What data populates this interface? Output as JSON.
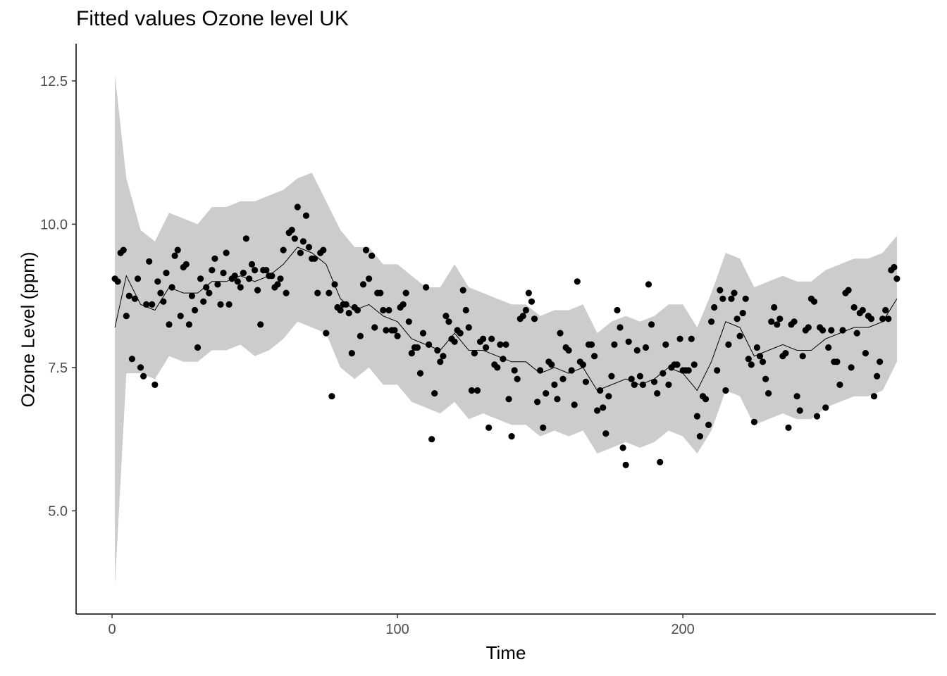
{
  "chart_data": {
    "type": "line",
    "title": "Fitted values Ozone level UK",
    "xlabel": "Time",
    "ylabel": "Ozone Level (ppm)",
    "xlim": [
      -12.6,
      288.6
    ],
    "ylim": [
      3.2,
      13.15
    ],
    "x_ticks": [
      0,
      100,
      200
    ],
    "x_tick_labels": [
      "0",
      "100",
      "200"
    ],
    "y_ticks": [
      5.0,
      7.5,
      10.0,
      12.5
    ],
    "y_tick_labels": [
      "5.0",
      "7.5",
      "10.0",
      "12.5"
    ],
    "grid": false,
    "colors": {
      "band": "#cccccc",
      "line": "#000000",
      "points": "#000000",
      "axis": "#000000",
      "tick_label": "#4d4d4d"
    },
    "fitted_line": {
      "x": [
        1,
        5,
        10,
        15,
        20,
        25,
        30,
        35,
        40,
        45,
        50,
        55,
        60,
        65,
        70,
        75,
        80,
        85,
        90,
        95,
        100,
        105,
        110,
        115,
        120,
        125,
        130,
        135,
        140,
        145,
        150,
        155,
        160,
        165,
        170,
        175,
        180,
        185,
        190,
        195,
        200,
        205,
        210,
        215,
        220,
        225,
        230,
        235,
        240,
        245,
        250,
        255,
        260,
        265,
        270,
        275
      ],
      "y": [
        8.2,
        9.1,
        8.6,
        8.5,
        8.9,
        8.8,
        8.8,
        9.0,
        9.0,
        9.1,
        9.0,
        9.1,
        9.3,
        9.6,
        9.5,
        9.3,
        8.7,
        8.5,
        8.6,
        8.4,
        8.3,
        8.0,
        7.9,
        7.8,
        8.1,
        7.8,
        7.8,
        7.7,
        7.6,
        7.6,
        7.4,
        7.5,
        7.4,
        7.5,
        7.1,
        7.2,
        7.3,
        7.2,
        7.3,
        7.5,
        7.4,
        7.1,
        7.6,
        8.3,
        8.2,
        7.7,
        7.8,
        7.9,
        7.8,
        7.8,
        8.0,
        8.1,
        8.2,
        8.2,
        8.3,
        8.7
      ]
    },
    "band_upper": [
      12.6,
      10.8,
      9.9,
      9.7,
      10.2,
      10.1,
      10.0,
      10.3,
      10.3,
      10.4,
      10.4,
      10.5,
      10.6,
      10.8,
      10.9,
      10.4,
      9.9,
      9.6,
      9.6,
      9.3,
      9.3,
      9.1,
      8.9,
      8.9,
      9.3,
      8.9,
      8.8,
      8.7,
      8.6,
      8.6,
      8.4,
      8.5,
      8.5,
      8.6,
      8.1,
      8.3,
      8.4,
      8.3,
      8.4,
      8.6,
      8.6,
      8.2,
      8.8,
      9.5,
      9.4,
      8.9,
      9.0,
      9.1,
      9.0,
      9.0,
      9.2,
      9.3,
      9.4,
      9.4,
      9.5,
      9.8
    ],
    "band_lower": [
      3.7,
      7.4,
      7.4,
      7.3,
      7.7,
      7.6,
      7.6,
      7.8,
      7.8,
      7.9,
      7.7,
      7.8,
      8.0,
      8.3,
      8.2,
      8.1,
      7.5,
      7.3,
      7.5,
      7.2,
      7.2,
      6.9,
      6.8,
      6.7,
      6.9,
      6.6,
      6.7,
      6.6,
      6.5,
      6.5,
      6.3,
      6.4,
      6.3,
      6.4,
      6.0,
      6.1,
      6.2,
      6.1,
      6.2,
      6.4,
      6.3,
      6.0,
      6.4,
      7.1,
      7.0,
      6.5,
      6.6,
      6.7,
      6.6,
      6.6,
      6.8,
      6.9,
      7.0,
      7.0,
      7.1,
      7.6
    ],
    "observed_points": {
      "x": [
        1,
        2,
        3,
        4,
        5,
        6,
        7,
        8,
        9,
        10,
        11,
        12,
        13,
        14,
        15,
        16,
        17,
        18,
        19,
        20,
        21,
        22,
        23,
        24,
        25,
        26,
        27,
        28,
        29,
        30,
        31,
        32,
        33,
        34,
        35,
        36,
        37,
        38,
        39,
        40,
        41,
        42,
        43,
        44,
        45,
        46,
        47,
        48,
        49,
        50,
        51,
        52,
        53,
        54,
        55,
        56,
        57,
        58,
        59,
        60,
        61,
        62,
        63,
        64,
        65,
        66,
        67,
        68,
        69,
        70,
        71,
        72,
        73,
        74,
        75,
        76,
        77,
        78,
        79,
        80,
        81,
        82,
        83,
        84,
        85,
        86,
        87,
        88,
        89,
        90,
        91,
        92,
        93,
        94,
        95,
        96,
        97,
        98,
        99,
        100,
        101,
        102,
        103,
        104,
        105,
        106,
        107,
        108,
        109,
        110,
        111,
        112,
        113,
        114,
        115,
        116,
        117,
        118,
        119,
        120,
        121,
        122,
        123,
        124,
        125,
        126,
        127,
        128,
        129,
        130,
        131,
        132,
        133,
        134,
        135,
        136,
        137,
        138,
        139,
        140,
        141,
        142,
        143,
        144,
        145,
        146,
        147,
        148,
        149,
        150,
        151,
        152,
        153,
        154,
        155,
        156,
        157,
        158,
        159,
        160,
        161,
        162,
        163,
        164,
        165,
        166,
        167,
        168,
        169,
        170,
        171,
        172,
        173,
        174,
        175,
        176,
        177,
        178,
        179,
        180,
        181,
        182,
        183,
        184,
        185,
        186,
        187,
        188,
        189,
        190,
        191,
        192,
        193,
        194,
        195,
        196,
        197,
        198,
        199,
        200,
        201,
        202,
        203,
        204,
        205,
        206,
        207,
        208,
        209,
        210,
        211,
        212,
        213,
        214,
        215,
        216,
        217,
        218,
        219,
        220,
        221,
        222,
        223,
        224,
        225,
        226,
        227,
        228,
        229,
        230,
        231,
        232,
        233,
        234,
        235,
        236,
        237,
        238,
        239,
        240,
        241,
        242,
        243,
        244,
        245,
        246,
        247,
        248,
        249,
        250,
        251,
        252,
        253,
        254,
        255,
        256,
        257,
        258,
        259,
        260,
        261,
        262,
        263,
        264,
        265,
        266,
        267,
        268,
        269,
        270,
        271,
        272,
        273,
        274,
        275
      ],
      "y": [
        9.05,
        9.0,
        9.5,
        9.55,
        8.4,
        8.75,
        7.65,
        8.7,
        9.05,
        7.5,
        7.35,
        8.6,
        9.35,
        8.6,
        7.2,
        9.0,
        8.8,
        8.65,
        9.15,
        8.25,
        8.9,
        9.45,
        9.55,
        8.4,
        9.25,
        9.3,
        8.25,
        8.75,
        8.5,
        7.85,
        9.05,
        8.65,
        8.9,
        8.8,
        9.2,
        9.4,
        8.95,
        8.6,
        9.15,
        9.5,
        8.6,
        9.05,
        9.1,
        9.0,
        8.9,
        9.15,
        9.75,
        9.05,
        9.3,
        9.2,
        8.85,
        8.25,
        9.2,
        9.2,
        9.1,
        9.1,
        8.9,
        8.95,
        9.05,
        9.55,
        8.8,
        9.85,
        9.9,
        9.75,
        10.3,
        9.5,
        9.7,
        10.15,
        9.6,
        9.4,
        9.4,
        8.8,
        9.5,
        9.55,
        8.1,
        8.8,
        7.0,
        8.95,
        8.55,
        8.5,
        8.6,
        8.6,
        8.45,
        7.75,
        8.55,
        8.5,
        8.05,
        8.95,
        9.55,
        9.05,
        9.45,
        8.2,
        8.8,
        8.8,
        8.5,
        8.15,
        8.5,
        8.15,
        8.15,
        8.05,
        8.55,
        8.6,
        8.8,
        8.3,
        7.75,
        7.85,
        7.85,
        7.4,
        8.1,
        8.9,
        7.9,
        6.25,
        7.05,
        7.8,
        7.6,
        7.7,
        8.4,
        8.3,
        8.0,
        7.95,
        8.15,
        8.1,
        8.85,
        8.5,
        8.2,
        7.1,
        7.75,
        7.1,
        7.95,
        8.0,
        7.85,
        6.45,
        8.0,
        7.55,
        7.5,
        7.9,
        7.65,
        7.9,
        6.95,
        6.3,
        7.45,
        7.3,
        8.35,
        8.4,
        8.5,
        8.8,
        8.65,
        8.35,
        6.9,
        7.45,
        6.45,
        7.05,
        7.6,
        7.55,
        7.2,
        6.95,
        8.1,
        7.3,
        7.85,
        7.8,
        7.45,
        6.85,
        9.0,
        7.6,
        7.55,
        7.25,
        7.9,
        7.9,
        7.7,
        6.75,
        7.1,
        6.8,
        6.35,
        7.0,
        7.35,
        7.9,
        8.5,
        8.2,
        6.1,
        5.8,
        7.95,
        7.3,
        7.2,
        7.8,
        7.35,
        7.2,
        7.85,
        8.95,
        8.25,
        7.25,
        7.05,
        5.85,
        7.4,
        7.9,
        7.2,
        7.5,
        7.55,
        7.55,
        8.0,
        7.45,
        7.45,
        7.45,
        8.0,
        7.55,
        6.65,
        6.3,
        7.0,
        6.95,
        6.5,
        8.3,
        8.55,
        7.45,
        8.85,
        8.7,
        7.1,
        7.9,
        8.7,
        8.8,
        8.35,
        8.05,
        8.45,
        8.7,
        7.65,
        7.55,
        6.55,
        7.85,
        7.7,
        7.6,
        7.3,
        7.05,
        8.3,
        8.55,
        8.25,
        8.35,
        7.7,
        7.75,
        6.45,
        8.25,
        8.3,
        7.0,
        6.75,
        7.7,
        8.15,
        8.2,
        8.7,
        8.65,
        6.65,
        8.2,
        8.15,
        6.8,
        7.85,
        8.15,
        7.6,
        7.6,
        7.2,
        8.15,
        8.8,
        8.85,
        7.5,
        8.55,
        8.1,
        8.45,
        8.5,
        7.75,
        8.4,
        8.35,
        7.0,
        7.35,
        7.6,
        8.35,
        8.5,
        8.35,
        9.2,
        9.25,
        9.05
      ]
    }
  }
}
